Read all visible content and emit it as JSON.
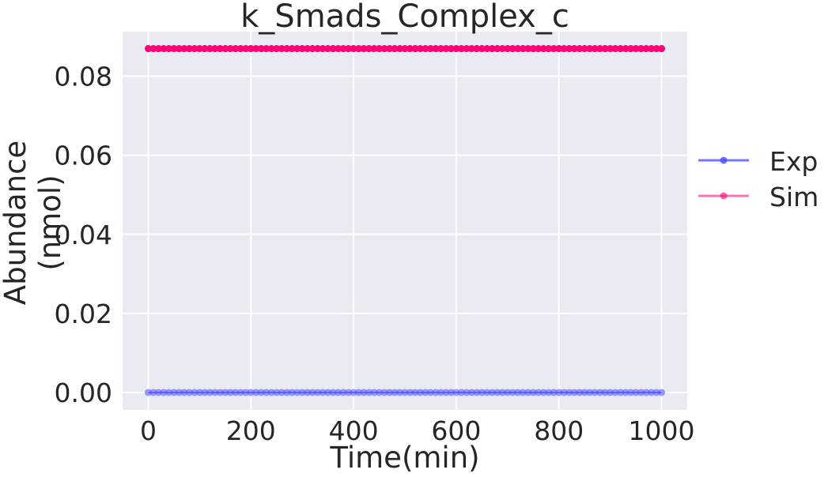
{
  "chart_data": {
    "type": "line",
    "title": "k_Smads_Complex_c",
    "xlabel": "Time(min)",
    "ylabel_lines": [
      "Abundance",
      "(nmol)"
    ],
    "xlim": [
      -50,
      1050
    ],
    "ylim": [
      -0.0044,
      0.0913
    ],
    "xticks": [
      0,
      200,
      400,
      600,
      800,
      1000
    ],
    "xtick_labels": [
      "0",
      "200",
      "400",
      "600",
      "800",
      "1000"
    ],
    "yticks": [
      0.0,
      0.02,
      0.04,
      0.06,
      0.08
    ],
    "ytick_labels": [
      "0.00",
      "0.02",
      "0.04",
      "0.06",
      "0.08"
    ],
    "grid": true,
    "legend_position": "right-outside",
    "series": [
      {
        "name": "Exp",
        "color": "#4a4aff",
        "x_start": 0,
        "x_end": 1000,
        "x_step": 10,
        "y_constant": 0.0,
        "sample_marker_every": 10,
        "marker_alpha": 0.55
      },
      {
        "name": "Sim",
        "color": "#ff0077",
        "x_start": 0,
        "x_end": 1000,
        "x_step": 10,
        "y_constant": 0.087,
        "sample_marker_every": 10,
        "marker_alpha": 1.0
      }
    ]
  }
}
